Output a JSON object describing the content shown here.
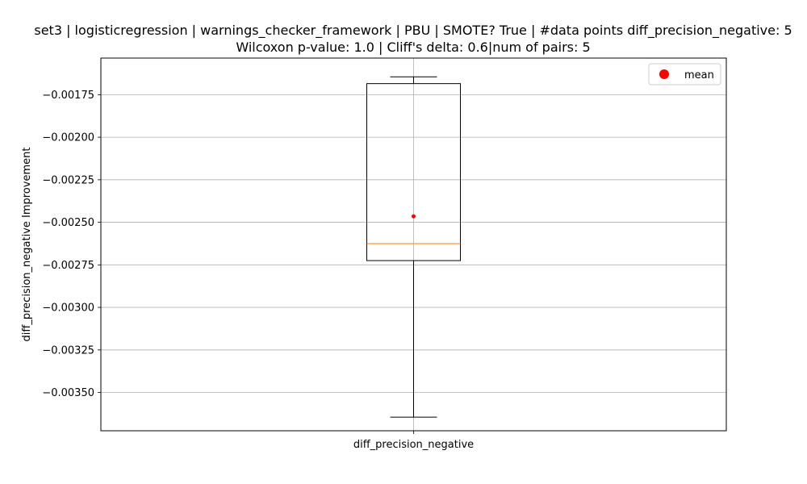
{
  "chart_data": {
    "type": "box",
    "title_line1": "set3 | logisticregression | warnings_checker_framework | PBU | SMOTE? True | #data points diff_precision_negative: 5",
    "title_line2": "Wilcoxon p-value: 1.0 | Cliff's delta: 0.6|num of pairs: 5",
    "xlabel": "",
    "ylabel": "diff_precision_negative Improvement",
    "categories": [
      "diff_precision_negative"
    ],
    "box": {
      "whisker_low": -0.003645,
      "q1": -0.002725,
      "median": -0.002625,
      "q3": -0.001685,
      "whisker_high": -0.001645,
      "mean": -0.002465
    },
    "ylim": [
      -0.003725,
      -0.001535
    ],
    "yticks": [
      -0.00175,
      -0.002,
      -0.00225,
      -0.0025,
      -0.00275,
      -0.003,
      -0.00325,
      -0.0035
    ],
    "ytick_labels": [
      "−0.00175",
      "−0.00200",
      "−0.00225",
      "−0.00250",
      "−0.00275",
      "−0.00300",
      "−0.00325",
      "−0.00350"
    ],
    "grid": true,
    "legend": {
      "label": "mean",
      "placement": "top-right"
    },
    "colors": {
      "box": "#000000",
      "median": "#ff7f0e",
      "mean": "#ff0000",
      "grid": "#b0b0b0"
    }
  }
}
